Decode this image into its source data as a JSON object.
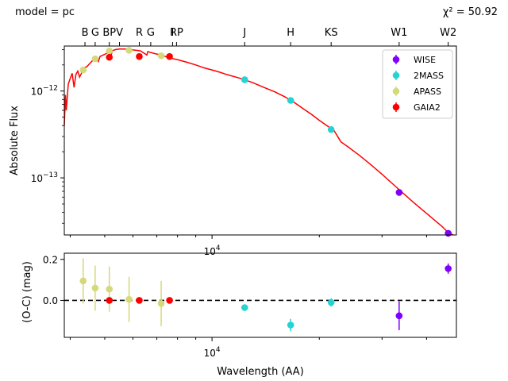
{
  "header": {
    "model_text": "model = pc",
    "chi2_text": "χ² = 50.92"
  },
  "filter_labels": [
    {
      "label": "B",
      "wavelength": 4400
    },
    {
      "label": "G",
      "wavelength": 4700
    },
    {
      "label": "BP",
      "wavelength": 5150
    },
    {
      "label": "V",
      "wavelength": 5500
    },
    {
      "label": "R",
      "wavelength": 6250
    },
    {
      "label": "G",
      "wavelength": 6730
    },
    {
      "label": "I",
      "wavelength": 7750
    },
    {
      "label": "RP",
      "wavelength": 7950
    },
    {
      "label": "J",
      "wavelength": 12350
    },
    {
      "label": "H",
      "wavelength": 16620
    },
    {
      "label": "KS",
      "wavelength": 21590
    },
    {
      "label": "W1",
      "wavelength": 33500
    },
    {
      "label": "W2",
      "wavelength": 46000
    }
  ],
  "colors": {
    "WISE": "#7f00ff",
    "2MASS": "#26d3d3",
    "APASS": "#d5d97a",
    "GAIA2": "#ff0000",
    "model": "#ff0000"
  },
  "chart_data": [
    {
      "type": "scatter",
      "panel": "sed",
      "xlabel": "",
      "ylabel": "Absolute Flux",
      "x_scale": "log",
      "y_scale": "log",
      "xlim": [
        3850,
        48500
      ],
      "ylim": [
        2.2e-14,
        3.3e-12
      ],
      "x_tick_labels": [
        "10^4"
      ],
      "y_tick_labels": [
        "10^-12",
        "10^-13"
      ],
      "legend": {
        "position": "top-right",
        "entries": [
          "WISE",
          "2MASS",
          "APASS",
          "GAIA2"
        ]
      },
      "series": [
        {
          "name": "WISE",
          "points": [
            [
              33500,
              6.8e-14
            ],
            [
              46000,
              2.3e-14
            ]
          ]
        },
        {
          "name": "2MASS",
          "points": [
            [
              12350,
              1.35e-12
            ],
            [
              16620,
              7.8e-13
            ],
            [
              21590,
              3.6e-13
            ]
          ]
        },
        {
          "name": "APASS",
          "points": [
            [
              4350,
              1.75e-12
            ],
            [
              4700,
              2.35e-12
            ],
            [
              5150,
              2.9e-12
            ],
            [
              5850,
              2.95e-12
            ],
            [
              7200,
              2.55e-12
            ]
          ]
        },
        {
          "name": "GAIA2",
          "points": [
            [
              5150,
              2.45e-12
            ],
            [
              6250,
              2.5e-12
            ],
            [
              7600,
              2.5e-12
            ]
          ]
        }
      ],
      "model_curve": [
        [
          3850,
          4e-13
        ],
        [
          3880,
          9e-13
        ],
        [
          3900,
          6e-13
        ],
        [
          3950,
          1.2e-12
        ],
        [
          4000,
          1.4e-12
        ],
        [
          4050,
          1.6e-12
        ],
        [
          4100,
          1.1e-12
        ],
        [
          4150,
          1.55e-12
        ],
        [
          4200,
          1.7e-12
        ],
        [
          4250,
          1.45e-12
        ],
        [
          4300,
          1.6e-12
        ],
        [
          4350,
          1.85e-12
        ],
        [
          4450,
          1.9e-12
        ],
        [
          4550,
          2.1e-12
        ],
        [
          4650,
          2.3e-12
        ],
        [
          4750,
          2.4e-12
        ],
        [
          4800,
          2.2e-12
        ],
        [
          4850,
          2.5e-12
        ],
        [
          4950,
          2.6e-12
        ],
        [
          5050,
          2.7e-12
        ],
        [
          5150,
          2.8e-12
        ],
        [
          5200,
          2.5e-12
        ],
        [
          5250,
          2.9e-12
        ],
        [
          5350,
          3e-12
        ],
        [
          5500,
          3.05e-12
        ],
        [
          5700,
          3.05e-12
        ],
        [
          5900,
          3e-12
        ],
        [
          6100,
          2.95e-12
        ],
        [
          6300,
          2.9e-12
        ],
        [
          6563,
          2.6e-12
        ],
        [
          6600,
          2.85e-12
        ],
        [
          6900,
          2.7e-12
        ],
        [
          7200,
          2.6e-12
        ],
        [
          7500,
          2.45e-12
        ],
        [
          7800,
          2.35e-12
        ],
        [
          8000,
          2.3e-12
        ],
        [
          8500,
          2.15e-12
        ],
        [
          9000,
          2e-12
        ],
        [
          9500,
          1.85e-12
        ],
        [
          10000,
          1.75e-12
        ],
        [
          10500,
          1.65e-12
        ],
        [
          11000,
          1.55e-12
        ],
        [
          12000,
          1.4e-12
        ],
        [
          13000,
          1.25e-12
        ],
        [
          14000,
          1.1e-12
        ],
        [
          15000,
          9.8e-13
        ],
        [
          16000,
          8.6e-13
        ],
        [
          17000,
          7.4e-13
        ],
        [
          18000,
          6.3e-13
        ],
        [
          19000,
          5.4e-13
        ],
        [
          20000,
          4.6e-13
        ],
        [
          21000,
          4e-13
        ],
        [
          22000,
          3.5e-13
        ],
        [
          23000,
          2.6e-13
        ],
        [
          24000,
          2.3e-13
        ],
        [
          26000,
          1.8e-13
        ],
        [
          28000,
          1.4e-13
        ],
        [
          30000,
          1.1e-13
        ],
        [
          33500,
          7.3e-14
        ],
        [
          37000,
          5.1e-14
        ],
        [
          40000,
          3.9e-14
        ],
        [
          44000,
          2.8e-14
        ],
        [
          46000,
          2.35e-14
        ],
        [
          47500,
          2.05e-14
        ]
      ]
    },
    {
      "type": "scatter",
      "panel": "residuals",
      "xlabel": "Wavelength (AA)",
      "ylabel": "(O-C) (mag)",
      "x_scale": "log",
      "xlim": [
        3850,
        48500
      ],
      "ylim": [
        -0.18,
        0.23
      ],
      "x_tick_labels": [
        "10^4"
      ],
      "y_tick_labels": [
        "0.2",
        "0.0"
      ],
      "reference_line": 0.0,
      "series": [
        {
          "name": "APASS",
          "points": [
            [
              4350,
              0.095,
              0.11
            ],
            [
              4700,
              0.06,
              0.11
            ],
            [
              5150,
              0.055,
              0.11
            ],
            [
              5850,
              0.005,
              0.11
            ],
            [
              7200,
              -0.015,
              0.11
            ]
          ]
        },
        {
          "name": "GAIA2",
          "points": [
            [
              5150,
              0.0,
              0.0
            ],
            [
              6250,
              0.0,
              0.0
            ],
            [
              7600,
              0.0,
              0.0
            ]
          ]
        },
        {
          "name": "2MASS",
          "points": [
            [
              12350,
              -0.035,
              0.0
            ],
            [
              16620,
              -0.12,
              0.03
            ],
            [
              21590,
              -0.01,
              0.02
            ]
          ]
        },
        {
          "name": "WISE",
          "points": [
            [
              33500,
              -0.075,
              0.07
            ],
            [
              46000,
              0.155,
              0.025
            ]
          ]
        }
      ]
    }
  ]
}
